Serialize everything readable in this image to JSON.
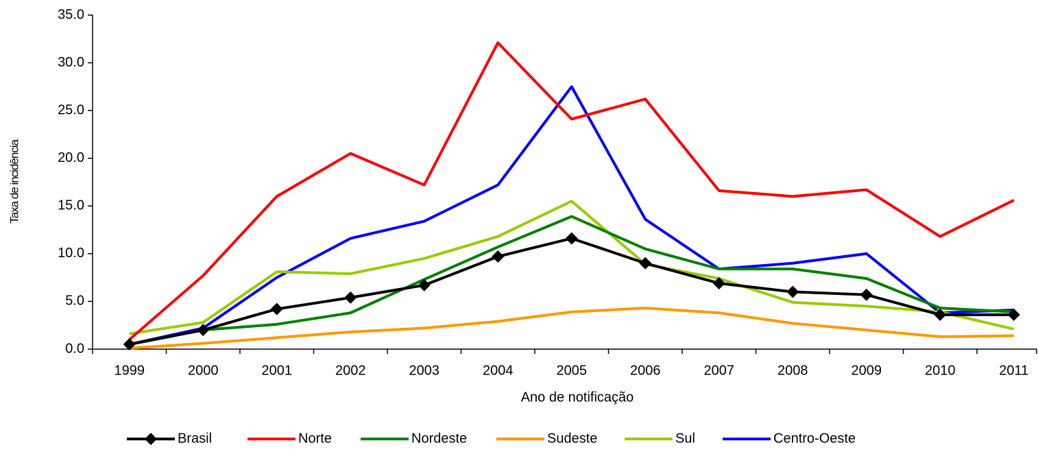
{
  "chart_data": {
    "type": "line",
    "xlabel": "Ano de notificação",
    "ylabel": "Taxa de incidência",
    "categories": [
      "1999",
      "2000",
      "2001",
      "2002",
      "2003",
      "2004",
      "2005",
      "2006",
      "2007",
      "2008",
      "2009",
      "2010",
      "2011"
    ],
    "ylim": [
      0,
      35
    ],
    "yticks": [
      {
        "value": 0,
        "label": "0.0"
      },
      {
        "value": 5,
        "label": "5.0"
      },
      {
        "value": 10,
        "label": "10.0"
      },
      {
        "value": 15,
        "label": "15.0"
      },
      {
        "value": 20,
        "label": "20.0"
      },
      {
        "value": 25,
        "label": "25.0"
      },
      {
        "value": 30,
        "label": "30.0"
      },
      {
        "value": 35,
        "label": "35.0"
      }
    ],
    "legend": "bottom",
    "series": [
      {
        "name": "Brasil",
        "color": "#000000",
        "marker": "diamond",
        "values": [
          0.5,
          2.0,
          4.2,
          5.4,
          6.7,
          9.7,
          11.6,
          9.0,
          6.9,
          6.0,
          5.7,
          3.6,
          3.6
        ]
      },
      {
        "name": "Norte",
        "color": "#ff0000",
        "values": [
          1.0,
          7.7,
          16.0,
          20.5,
          17.2,
          32.1,
          24.1,
          26.2,
          16.6,
          16.0,
          16.7,
          11.8,
          15.6
        ]
      },
      {
        "name": "Nordeste",
        "color": "#008000",
        "values": [
          0.5,
          2.0,
          2.6,
          3.8,
          7.3,
          10.7,
          13.9,
          10.5,
          8.4,
          8.4,
          7.4,
          4.3,
          3.9
        ]
      },
      {
        "name": "Sudeste",
        "color": "#ff9900",
        "values": [
          0.1,
          0.6,
          1.2,
          1.8,
          2.2,
          2.9,
          3.9,
          4.3,
          3.8,
          2.7,
          2.0,
          1.3,
          1.4
        ]
      },
      {
        "name": "Sul",
        "color": "#99cc00",
        "values": [
          1.6,
          2.8,
          8.1,
          7.9,
          9.5,
          11.8,
          15.5,
          8.9,
          7.4,
          4.9,
          4.5,
          3.9,
          2.1
        ]
      },
      {
        "name": "Centro-Oeste",
        "color": "#0000ff",
        "values": [
          0.5,
          2.2,
          7.5,
          11.6,
          13.4,
          17.2,
          27.5,
          13.6,
          8.4,
          9.0,
          10.0,
          3.8,
          4.1
        ]
      }
    ]
  }
}
